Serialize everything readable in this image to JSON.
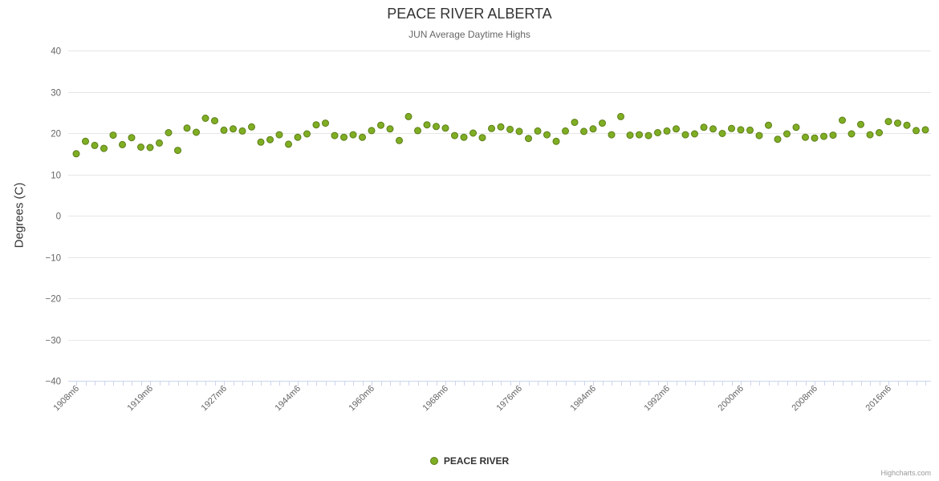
{
  "chart": {
    "title": "PEACE RIVER ALBERTA",
    "subtitle": "JUN Average Daytime Highs",
    "ylabel": "Degrees (C)",
    "legend_label": "PEACE RIVER",
    "credits": "Highcharts.com"
  },
  "chart_data": {
    "type": "scatter",
    "title": "PEACE RIVER ALBERTA",
    "subtitle": "JUN Average Daytime Highs",
    "xlabel": "",
    "ylabel": "Degrees (C)",
    "ylim": [
      -40,
      40
    ],
    "ytick_step": 10,
    "y_tick_labels": [
      "40",
      "30",
      "20",
      "10",
      "0",
      "−10",
      "−20",
      "−30",
      "−40"
    ],
    "grid": true,
    "legend_position": "bottom",
    "x_tick_positions": [
      0,
      8,
      16,
      24,
      32,
      40,
      48,
      56,
      64,
      72,
      80,
      88
    ],
    "x_tick_labels": [
      "1908m6",
      "1919m6",
      "1927m6",
      "1944m6",
      "1960m6",
      "1968m6",
      "1976m6",
      "1984m6",
      "1992m6",
      "2000m6",
      "2008m6",
      "2016m6"
    ],
    "series": [
      {
        "name": "PEACE RIVER",
        "marker_color": "#7fae23",
        "marker_border_color": "#5c7d18",
        "values": [
          15.0,
          18.0,
          17.0,
          16.3,
          19.5,
          17.2,
          18.9,
          16.6,
          16.5,
          17.6,
          20.1,
          15.8,
          21.2,
          20.2,
          23.6,
          23.0,
          20.7,
          21.0,
          20.5,
          21.5,
          17.8,
          18.4,
          19.6,
          17.3,
          19.0,
          19.8,
          22.0,
          22.4,
          19.4,
          19.0,
          19.6,
          19.0,
          20.6,
          21.9,
          21.0,
          18.2,
          24.0,
          20.6,
          22.0,
          21.6,
          21.2,
          19.4,
          19.0,
          20.0,
          18.9,
          21.1,
          21.5,
          20.9,
          20.4,
          18.7,
          20.5,
          19.6,
          18.0,
          20.5,
          22.6,
          20.4,
          21.0,
          22.4,
          19.6,
          24.0,
          19.5,
          19.6,
          19.4,
          20.1,
          20.5,
          21.0,
          19.6,
          19.8,
          21.4,
          21.0,
          19.9,
          21.1,
          20.8,
          20.7,
          19.4,
          21.9,
          18.5,
          19.8,
          21.4,
          19.0,
          18.8,
          19.2,
          19.5,
          23.1,
          19.8,
          22.1,
          19.6,
          20.1,
          22.8,
          22.4,
          21.9,
          20.6,
          20.8
        ]
      }
    ],
    "colors": {
      "gridline": "#e6e6e6",
      "axis_line": "#ccd6eb",
      "tick": "#ccd6eb",
      "axis_label": "#666666",
      "title": "#333333",
      "subtitle": "#666666"
    }
  }
}
